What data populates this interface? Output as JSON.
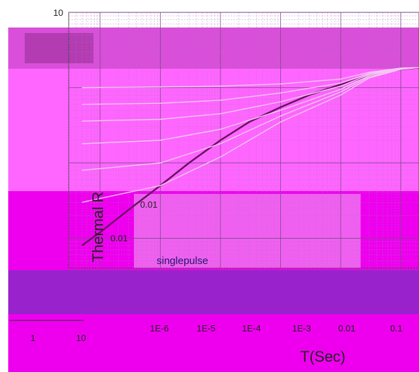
{
  "chart_data": {
    "type": "line",
    "title": "",
    "xlabel": "T(Sec)",
    "ylabel": "Thermal R",
    "xscale": "log",
    "yscale": "log",
    "xlim": [
      3e-07,
      0.2
    ],
    "ylim": [
      0.004,
      10
    ],
    "grid": true,
    "x_ticks": [
      {
        "label": "1E-6",
        "value": 1e-06
      },
      {
        "label": "1E-5",
        "value": 1e-05
      },
      {
        "label": "1E-4",
        "value": 0.0001
      },
      {
        "label": "1E-3",
        "value": 0.001
      },
      {
        "label": "0.01",
        "value": 0.01
      },
      {
        "label": "0.1",
        "value": 0.1
      }
    ],
    "y_ticks": [
      {
        "label": "10",
        "value": 10
      },
      {
        "label": "0.01",
        "value": 0.01
      }
    ],
    "extra_x_labels": [
      "1",
      "10"
    ],
    "extra_y_labels": [
      "0.01"
    ],
    "annotations": [
      "singlepulse"
    ],
    "series": [
      {
        "x": [
          5e-07,
          1e-06,
          3e-06,
          1e-05,
          3e-05,
          0.0001,
          0.0003,
          0.001,
          0.003,
          0.01,
          0.03,
          0.1,
          0.2
        ],
        "y": [
          0.008,
          0.012,
          0.024,
          0.05,
          0.1,
          0.2,
          0.35,
          0.55,
          0.8,
          1.1,
          1.45,
          1.75,
          1.85
        ]
      },
      {
        "x": [
          5e-07,
          1e-05,
          0.0001,
          0.001,
          0.01,
          0.03,
          0.1,
          0.2
        ],
        "y": [
          0.03,
          0.05,
          0.12,
          0.35,
          0.8,
          1.35,
          1.75,
          1.85
        ]
      },
      {
        "x": [
          5e-07,
          1e-05,
          0.0001,
          0.001,
          0.01,
          0.03,
          0.1,
          0.2
        ],
        "y": [
          0.08,
          0.1,
          0.18,
          0.42,
          0.88,
          1.4,
          1.75,
          1.85
        ]
      },
      {
        "x": [
          5e-07,
          1e-05,
          0.0001,
          0.001,
          0.01,
          0.03,
          0.1,
          0.2
        ],
        "y": [
          0.18,
          0.2,
          0.28,
          0.5,
          0.95,
          1.45,
          1.78,
          1.85
        ]
      },
      {
        "x": [
          5e-07,
          1e-05,
          0.0001,
          0.001,
          0.01,
          0.03,
          0.1,
          0.2
        ],
        "y": [
          0.36,
          0.38,
          0.45,
          0.65,
          1.05,
          1.5,
          1.8,
          1.85
        ]
      },
      {
        "x": [
          5e-07,
          1e-05,
          0.0001,
          0.001,
          0.01,
          0.03,
          0.1,
          0.2
        ],
        "y": [
          0.6,
          0.62,
          0.68,
          0.85,
          1.15,
          1.55,
          1.8,
          1.85
        ]
      },
      {
        "x": [
          5e-07,
          1e-05,
          0.0001,
          0.001,
          0.01,
          0.03,
          0.1,
          0.2
        ],
        "y": [
          1.0,
          1.02,
          1.05,
          1.12,
          1.3,
          1.6,
          1.82,
          1.85
        ]
      }
    ]
  }
}
